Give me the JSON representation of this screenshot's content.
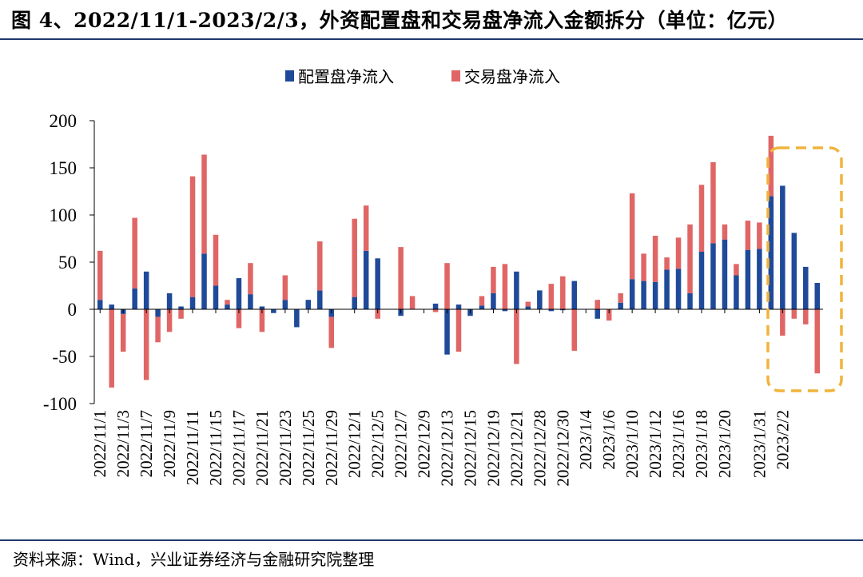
{
  "title": "图 4、2022/11/1-2023/2/3，外资配置盘和交易盘净流入金额拆分（单位：亿元）",
  "source": "资料来源：Wind，兴业证券经济与金融研究院整理",
  "colors": {
    "allocation": "#1f4a99",
    "trading": "#e06666",
    "highlight": "#f0b43c",
    "rule": "#1f3a6e"
  },
  "chart_data": {
    "type": "bar",
    "stacked": true,
    "legend_position": "top-center",
    "grid": false,
    "ylim": [
      -100,
      200
    ],
    "yticks": [
      "200",
      "150",
      "100",
      "50",
      "0",
      "-50",
      "-100"
    ],
    "xtick_labels": [
      "2022/11/1",
      "2022/11/3",
      "2022/11/7",
      "2022/11/9",
      "2022/11/11",
      "2022/11/15",
      "2022/11/17",
      "2022/11/21",
      "2022/11/23",
      "2022/11/25",
      "2022/11/29",
      "2022/12/1",
      "2022/12/5",
      "2022/12/7",
      "2022/12/9",
      "2022/12/13",
      "2022/12/15",
      "2022/12/19",
      "2022/12/21",
      "2022/12/28",
      "2022/12/30",
      "2023/1/4",
      "2023/1/6",
      "2023/1/10",
      "2023/1/12",
      "2023/1/16",
      "2023/1/18",
      "2023/1/20",
      "2023/1/31",
      "2023/2/2"
    ],
    "series": [
      {
        "name": "配置盘净流入",
        "values": [
          10,
          5,
          -5,
          22,
          40,
          -8,
          17,
          3,
          13,
          59,
          25,
          5,
          33,
          16,
          3,
          -4,
          10,
          -19,
          10,
          20,
          -8,
          0,
          13,
          62,
          54,
          0,
          -7,
          0,
          0,
          6,
          -48,
          5,
          -7,
          4,
          17,
          -2,
          40,
          3,
          20,
          -2,
          -1,
          30,
          0,
          -10,
          0,
          7,
          32,
          30,
          29,
          42,
          43,
          17,
          61,
          70,
          74,
          36,
          63,
          64,
          120,
          131,
          81,
          45,
          28
        ]
      },
      {
        "name": "交易盘净流入",
        "values": [
          52,
          -83,
          -40,
          75,
          -75,
          -27,
          -24,
          -10,
          128,
          105,
          54,
          5,
          -20,
          33,
          -24,
          0,
          26,
          0,
          0,
          52,
          -33,
          0,
          83,
          48,
          -10,
          0,
          66,
          14,
          0,
          -3,
          49,
          -45,
          0,
          10,
          28,
          48,
          -58,
          5,
          0,
          27,
          35,
          -44,
          0,
          10,
          -12,
          10,
          91,
          29,
          49,
          13,
          33,
          73,
          71,
          86,
          16,
          12,
          31,
          28,
          64,
          -28,
          -10,
          -16,
          -68
        ]
      }
    ]
  }
}
